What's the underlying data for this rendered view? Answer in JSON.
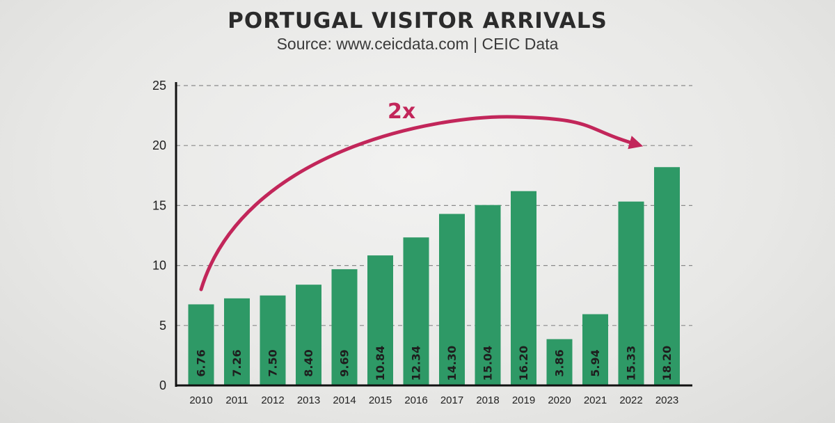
{
  "chart_data": {
    "type": "bar",
    "title": "PORTUGAL VISITOR ARRIVALS",
    "subtitle": "Source: www.ceicdata.com | CEIC Data",
    "categories": [
      "2010",
      "2011",
      "2012",
      "2013",
      "2014",
      "2015",
      "2016",
      "2017",
      "2018",
      "2019",
      "2020",
      "2021",
      "2022",
      "2023"
    ],
    "values": [
      6.76,
      7.26,
      7.5,
      8.4,
      9.69,
      10.84,
      12.34,
      14.3,
      15.04,
      16.2,
      3.86,
      5.94,
      15.33,
      18.2
    ],
    "value_labels": [
      "6.76",
      "7.26",
      "7.50",
      "8.40",
      "9.69",
      "10.84",
      "12.34",
      "14.30",
      "15.04",
      "16.20",
      "3.86",
      "5.94",
      "15.33",
      "18.20"
    ],
    "ylim": [
      0,
      25
    ],
    "yticks": [
      0,
      5,
      10,
      15,
      20,
      25
    ],
    "xlabel": "",
    "ylabel": "",
    "grid": true,
    "annotation": {
      "text": "2x",
      "arrow_from": "2010",
      "arrow_to": "2023"
    },
    "colors": {
      "bar": "#2e9966",
      "axis": "#111111",
      "grid": "#8a8a8a",
      "arrow": "#c2265a"
    }
  }
}
